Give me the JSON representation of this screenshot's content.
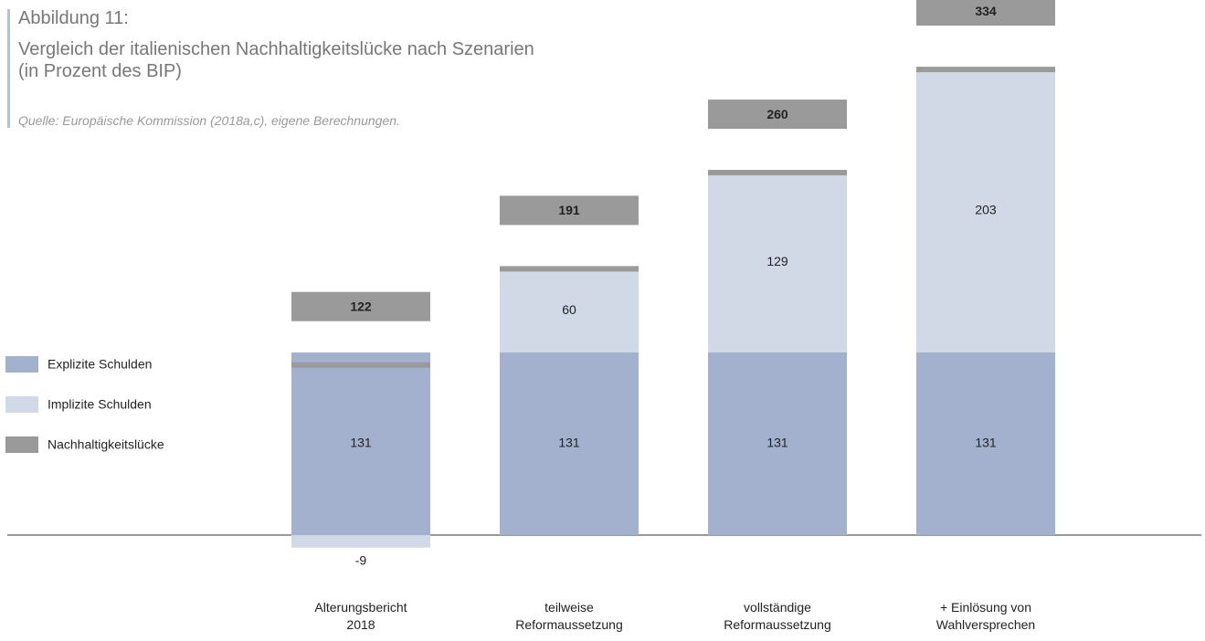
{
  "chart_data": {
    "type": "stacked_bar",
    "title": "Abbildung 11:",
    "subtitle": "Vergleich der italienischen Nachhaltigkeitslücke nach Szenarien\n(in Prozent des BIP)",
    "source": "Quelle: Europäische Kommission (2018a,c), eigene Berechnungen.",
    "categories": [
      "Alterungsbericht\n2018",
      "teilweise\nReformaussetzung",
      "vollständige\nReformaussetzung",
      "+ Einlösung von\nWahlversprechen"
    ],
    "series": [
      {
        "name": "Explizite Schulden",
        "color": "#a3b1cf",
        "values": [
          131,
          131,
          131,
          131
        ]
      },
      {
        "name": "Implizite Schulden",
        "color": "#d2d9e6",
        "values": [
          -9,
          60,
          129,
          203
        ]
      },
      {
        "name": "Nachhaltigkeitslücke",
        "color": "#9a9a9a",
        "values": [
          122,
          191,
          260,
          334
        ]
      }
    ]
  }
}
